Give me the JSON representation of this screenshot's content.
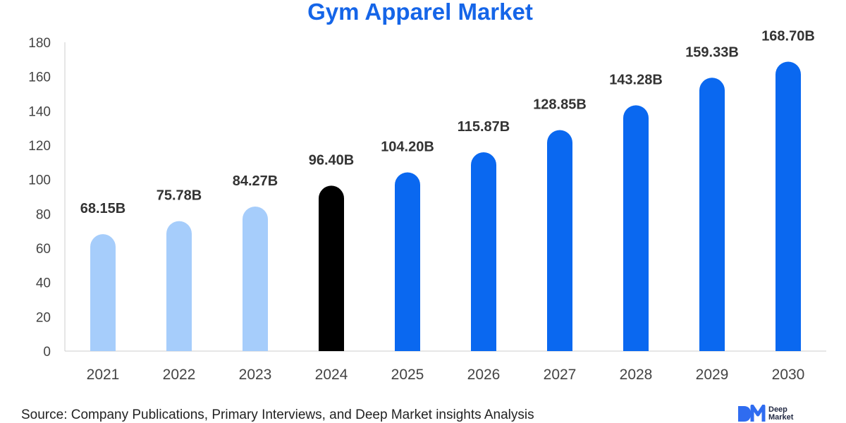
{
  "colors": {
    "title": "#1565e8",
    "historical": "#a6cdfb",
    "base_year": "#000000",
    "forecast": "#0a68f0",
    "axis": "#cccccc",
    "logo": "#2f6cf0"
  },
  "chart_data": {
    "type": "bar",
    "title": "Gym Apparel Market",
    "xlabel": "",
    "ylabel": "",
    "ylim": [
      0,
      180
    ],
    "yticks": [
      0,
      20,
      40,
      60,
      80,
      100,
      120,
      140,
      160,
      180
    ],
    "grid": false,
    "categories": [
      "2021",
      "2022",
      "2023",
      "2024",
      "2025",
      "2026",
      "2027",
      "2028",
      "2029",
      "2030"
    ],
    "values": [
      68.15,
      75.78,
      84.27,
      96.4,
      104.2,
      115.87,
      128.85,
      143.28,
      159.33,
      168.7
    ],
    "data_labels": [
      "68.15B",
      "75.78B",
      "84.27B",
      "96.40B",
      "104.20B",
      "115.87B",
      "128.85B",
      "143.28B",
      "159.33B",
      "168.70B"
    ],
    "bar_groups": [
      "historical",
      "historical",
      "historical",
      "base_year",
      "forecast",
      "forecast",
      "forecast",
      "forecast",
      "forecast",
      "forecast"
    ]
  },
  "footer": {
    "source_key": "Source",
    "source_text": ": Company Publications, Primary Interviews, and Deep Market insights Analysis"
  },
  "logo": {
    "line1": "Deep",
    "line2": "Market"
  }
}
